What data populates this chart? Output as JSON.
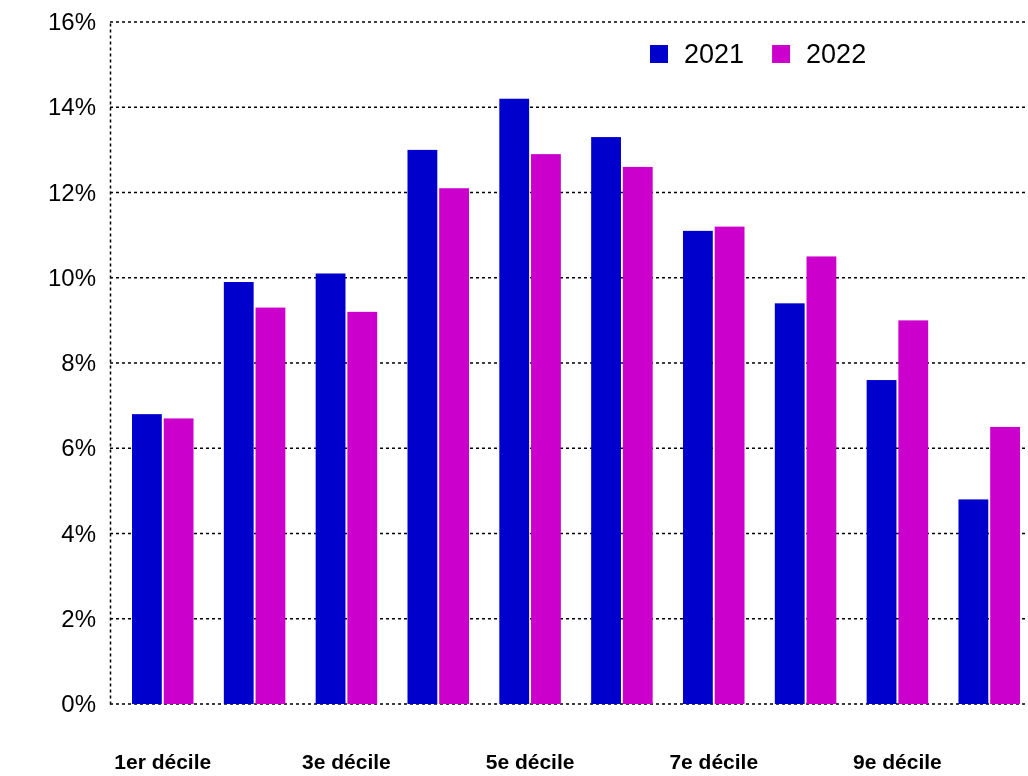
{
  "chart_data": {
    "type": "bar",
    "categories": [
      "1er décile",
      null,
      "3e décile",
      null,
      "5e décile",
      null,
      "7e décile",
      null,
      "9e décile",
      null
    ],
    "series": [
      {
        "name": "2021",
        "color": "#0000cc",
        "values": [
          6.8,
          9.9,
          10.1,
          13.0,
          14.2,
          13.3,
          11.1,
          9.4,
          7.6,
          4.8
        ]
      },
      {
        "name": "2022",
        "color": "#cc00cc",
        "values": [
          6.7,
          9.3,
          9.2,
          12.1,
          12.9,
          12.6,
          11.2,
          10.5,
          9.0,
          6.5
        ]
      }
    ],
    "ylim": [
      0,
      16
    ],
    "yticks": [
      {
        "value": 0,
        "label": "0%"
      },
      {
        "value": 2,
        "label": "2%"
      },
      {
        "value": 4,
        "label": "4%"
      },
      {
        "value": 6,
        "label": "6%"
      },
      {
        "value": 8,
        "label": "8%"
      },
      {
        "value": 10,
        "label": "10%"
      },
      {
        "value": 12,
        "label": "12%"
      },
      {
        "value": 14,
        "label": "14%"
      },
      {
        "value": 16,
        "label": "16%"
      }
    ],
    "grid": "y",
    "legend": "top right"
  }
}
